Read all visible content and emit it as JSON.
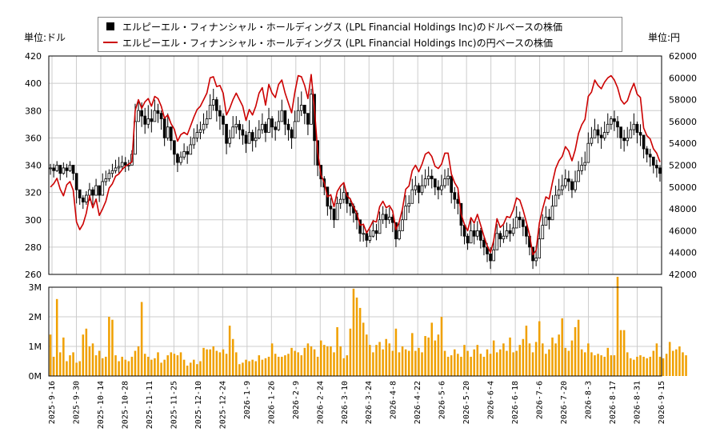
{
  "legend": {
    "dollar_series": "エルピーエル・フィナンシャル・ホールディングス (LPL Financial Holdings Inc)のドルベースの株価",
    "yen_series": "エルピーエル・フィナンシャル・ホールディングス (LPL Financial Holdings Inc)の円ベースの株価"
  },
  "units": {
    "left": "単位:ドル",
    "right": "単位:円"
  },
  "colors": {
    "candle": "#000000",
    "yen_line": "#cc0000",
    "volume": "#f0a000",
    "grid": "#cccccc"
  },
  "chart_data": {
    "type": "line",
    "x_tick_labels": [
      "2025-9-16",
      "2025-9-30",
      "2025-10-14",
      "2025-10-28",
      "2025-11-11",
      "2025-11-25",
      "2025-12-10",
      "2025-12-24",
      "2026-1-9",
      "2026-1-26",
      "2026-2-9",
      "2026-2-24",
      "2026-3-10",
      "2026-3-24",
      "2026-4-8",
      "2026-4-22",
      "2026-5-6",
      "2026-5-20",
      "2026-6-4",
      "2026-6-18",
      "2026-7-6",
      "2026-7-20",
      "2026-8-3",
      "2026-8-17",
      "2026-8-31",
      "2026-9-15"
    ],
    "price_axis": {
      "ylim": [
        260,
        420
      ],
      "ticks": [
        260,
        280,
        300,
        320,
        340,
        360,
        380,
        400,
        420
      ]
    },
    "yen_axis": {
      "ylim": [
        42000,
        62000
      ],
      "ticks": [
        42000,
        44000,
        46000,
        48000,
        50000,
        52000,
        54000,
        56000,
        58000,
        60000,
        62000
      ]
    },
    "volume_axis": {
      "ylim": [
        0,
        3000000
      ],
      "tick_labels": [
        "0M",
        "1M",
        "2M",
        "3M"
      ]
    },
    "dollar_close": [
      338,
      336,
      340,
      334,
      338,
      336,
      340,
      334,
      322,
      316,
      313,
      318,
      322,
      318,
      325,
      318,
      328,
      330,
      334,
      336,
      338,
      339,
      342,
      340,
      340,
      348,
      372,
      380,
      376,
      370,
      374,
      372,
      380,
      378,
      374,
      360,
      368,
      358,
      348,
      342,
      346,
      350,
      348,
      355,
      360,
      364,
      366,
      370,
      374,
      384,
      388,
      380,
      376,
      370,
      356,
      360,
      368,
      370,
      366,
      362,
      356,
      364,
      358,
      360,
      366,
      370,
      364,
      374,
      368,
      366,
      372,
      380,
      370,
      366,
      360,
      372,
      380,
      384,
      378,
      370,
      392,
      358,
      340,
      330,
      324,
      310,
      308,
      300,
      312,
      315,
      320,
      312,
      310,
      305,
      300,
      290,
      290,
      285,
      288,
      292,
      290,
      300,
      304,
      300,
      302,
      298,
      286,
      292,
      300,
      310,
      312,
      322,
      325,
      320,
      325,
      330,
      332,
      330,
      324,
      322,
      325,
      330,
      332,
      320,
      315,
      312,
      296,
      288,
      283,
      292,
      288,
      292,
      285,
      280,
      275,
      270,
      278,
      290,
      286,
      288,
      292,
      290,
      294,
      302,
      300,
      295,
      288,
      280,
      270,
      272,
      286,
      296,
      302,
      300,
      310,
      318,
      322,
      325,
      330,
      328,
      322,
      328,
      336,
      340,
      342,
      356,
      360,
      366,
      362,
      360,
      364,
      370,
      374,
      372,
      368,
      360,
      358,
      360,
      366,
      370,
      364,
      362,
      352,
      348,
      346,
      340,
      338,
      334
    ],
    "dollar_high": [
      341,
      341,
      343,
      339,
      342,
      341,
      343,
      339,
      329,
      322,
      318,
      321,
      327,
      324,
      330,
      325,
      334,
      336,
      337,
      341,
      344,
      346,
      347,
      346,
      344,
      351,
      385,
      388,
      386,
      382,
      384,
      381,
      388,
      385,
      380,
      370,
      378,
      365,
      356,
      349,
      350,
      356,
      354,
      361,
      367,
      370,
      372,
      378,
      380,
      392,
      396,
      390,
      384,
      378,
      365,
      366,
      376,
      376,
      373,
      370,
      365,
      373,
      366,
      368,
      373,
      378,
      372,
      382,
      376,
      372,
      380,
      388,
      378,
      374,
      368,
      380,
      390,
      394,
      384,
      378,
      396,
      368,
      350,
      338,
      332,
      318,
      316,
      308,
      317,
      323,
      327,
      320,
      316,
      312,
      307,
      298,
      296,
      292,
      293,
      300,
      297,
      306,
      310,
      308,
      309,
      304,
      296,
      298,
      308,
      318,
      318,
      330,
      332,
      327,
      333,
      337,
      339,
      337,
      330,
      329,
      333,
      337,
      338,
      330,
      324,
      320,
      304,
      295,
      290,
      300,
      297,
      299,
      294,
      287,
      283,
      280,
      286,
      297,
      292,
      296,
      298,
      297,
      301,
      310,
      306,
      302,
      296,
      289,
      278,
      281,
      294,
      304,
      310,
      308,
      318,
      325,
      330,
      333,
      337,
      336,
      330,
      336,
      343,
      346,
      350,
      364,
      368,
      374,
      370,
      368,
      372,
      378,
      376,
      380,
      376,
      368,
      366,
      368,
      372,
      378,
      372,
      370,
      360,
      354,
      352,
      346,
      344,
      340
    ],
    "dollar_low": [
      333,
      331,
      335,
      329,
      333,
      331,
      335,
      329,
      312,
      311,
      308,
      311,
      314,
      311,
      318,
      313,
      323,
      325,
      328,
      331,
      334,
      334,
      337,
      335,
      336,
      342,
      358,
      374,
      368,
      363,
      367,
      364,
      373,
      371,
      366,
      354,
      358,
      351,
      340,
      335,
      340,
      344,
      341,
      348,
      352,
      357,
      359,
      363,
      367,
      376,
      380,
      372,
      366,
      362,
      348,
      353,
      361,
      363,
      359,
      355,
      349,
      357,
      350,
      353,
      359,
      363,
      357,
      367,
      360,
      358,
      365,
      373,
      362,
      358,
      352,
      365,
      372,
      376,
      370,
      362,
      384,
      340,
      332,
      324,
      318,
      303,
      300,
      294,
      306,
      308,
      312,
      305,
      303,
      298,
      293,
      284,
      284,
      280,
      283,
      287,
      285,
      293,
      297,
      294,
      297,
      291,
      280,
      285,
      292,
      302,
      305,
      315,
      318,
      312,
      318,
      323,
      325,
      323,
      318,
      315,
      318,
      323,
      325,
      312,
      308,
      304,
      288,
      282,
      278,
      286,
      282,
      285,
      279,
      274,
      269,
      264,
      271,
      283,
      280,
      283,
      286,
      284,
      288,
      295,
      294,
      288,
      282,
      274,
      264,
      266,
      279,
      290,
      296,
      293,
      303,
      310,
      315,
      318,
      323,
      321,
      316,
      320,
      329,
      333,
      336,
      350,
      354,
      360,
      356,
      352,
      358,
      362,
      366,
      365,
      360,
      352,
      350,
      354,
      360,
      362,
      356,
      354,
      345,
      342,
      339,
      334,
      331,
      328
    ],
    "yen_close": [
      50000,
      50300,
      50800,
      49800,
      49200,
      50200,
      50500,
      49700,
      46800,
      46100,
      46600,
      47600,
      49200,
      48100,
      48900,
      47400,
      48000,
      48700,
      49900,
      50300,
      51000,
      51200,
      51600,
      51900,
      52100,
      52300,
      57000,
      58000,
      57200,
      57800,
      58100,
      57400,
      58300,
      58100,
      57400,
      56300,
      56600,
      55800,
      55300,
      54200,
      54800,
      55000,
      54800,
      55600,
      56400,
      57100,
      57400,
      58000,
      58600,
      60000,
      60100,
      59200,
      59300,
      58600,
      56600,
      57200,
      58000,
      58600,
      58000,
      57400,
      56100,
      57100,
      56600,
      57400,
      58600,
      59100,
      57500,
      59400,
      58600,
      58200,
      59400,
      59800,
      58600,
      57700,
      56800,
      58700,
      60200,
      60100,
      59300,
      58100,
      60300,
      57200,
      53200,
      51100,
      50400,
      49100,
      49300,
      48200,
      49600,
      50100,
      50400,
      49200,
      48900,
      48200,
      47600,
      46500,
      46600,
      45800,
      46300,
      46900,
      46800,
      48200,
      48700,
      48100,
      48300,
      47800,
      46100,
      46800,
      48000,
      49800,
      50100,
      51500,
      52000,
      51400,
      52100,
      53000,
      53200,
      52800,
      51900,
      51700,
      52100,
      53100,
      53100,
      51200,
      50400,
      49900,
      47500,
      46600,
      46000,
      47200,
      46700,
      47500,
      46500,
      45500,
      44600,
      44000,
      45100,
      47100,
      46300,
      46600,
      47300,
      47200,
      47900,
      49000,
      48800,
      47900,
      46800,
      45600,
      43800,
      44200,
      46700,
      48000,
      49100,
      48900,
      50400,
      51700,
      52400,
      52800,
      53700,
      53300,
      52400,
      53400,
      54900,
      55700,
      56200,
      58300,
      58700,
      59800,
      59300,
      59000,
      59600,
      60000,
      60200,
      59800,
      59100,
      58000,
      57600,
      57900,
      58800,
      59500,
      58500,
      58200,
      55400,
      54700,
      54400,
      53500,
      53100,
      52300
    ],
    "volume": [
      1400000,
      650000,
      2600000,
      800000,
      1300000,
      500000,
      700000,
      800000,
      450000,
      500000,
      1400000,
      1600000,
      1000000,
      1100000,
      700000,
      850000,
      600000,
      650000,
      2000000,
      1900000,
      700000,
      500000,
      650000,
      550000,
      500000,
      650000,
      850000,
      1000000,
      2500000,
      750000,
      650000,
      550000,
      600000,
      800000,
      450000,
      550000,
      700000,
      800000,
      750000,
      700000,
      800000,
      550000,
      350000,
      450000,
      550000,
      400000,
      500000,
      950000,
      900000,
      900000,
      1000000,
      850000,
      800000,
      900000,
      750000,
      1700000,
      1250000,
      800000,
      400000,
      450000,
      550000,
      500000,
      550000,
      500000,
      700000,
      550000,
      600000,
      650000,
      1100000,
      750000,
      650000,
      650000,
      700000,
      750000,
      950000,
      850000,
      800000,
      700000,
      950000,
      1100000,
      1000000,
      900000,
      650000,
      1200000,
      1050000,
      1000000,
      1000000,
      800000,
      1650000,
      1000000,
      600000,
      700000,
      1600000,
      2950000,
      2650000,
      2300000,
      1800000,
      1400000,
      1050000,
      800000,
      1050000,
      1150000,
      900000,
      1250000,
      1100000,
      850000,
      1600000,
      800000,
      1000000,
      900000,
      850000,
      1450000,
      850000,
      950000,
      800000,
      1350000,
      1300000,
      1800000,
      1200000,
      1400000,
      2000000,
      850000,
      650000,
      700000,
      900000,
      750000,
      650000,
      1050000,
      850000,
      650000,
      900000,
      1050000,
      750000,
      650000,
      900000,
      750000,
      1200000,
      800000,
      900000,
      1100000,
      850000,
      1300000,
      800000,
      850000,
      1050000,
      1250000,
      1700000,
      1100000,
      800000,
      1150000,
      1850000,
      1100000,
      750000,
      900000,
      1300000,
      1100000,
      1400000,
      1950000,
      950000,
      850000,
      1200000,
      1650000,
      1900000,
      900000,
      800000,
      1100000,
      800000,
      700000,
      750000,
      700000,
      650000,
      950000,
      700000,
      700000,
      3350000,
      1550000,
      1550000,
      800000,
      600000,
      550000,
      650000,
      700000,
      650000,
      600000,
      650000,
      850000,
      1100000,
      650000,
      600000,
      750000,
      1150000,
      850000,
      900000,
      1000000,
      800000,
      700000
    ]
  }
}
